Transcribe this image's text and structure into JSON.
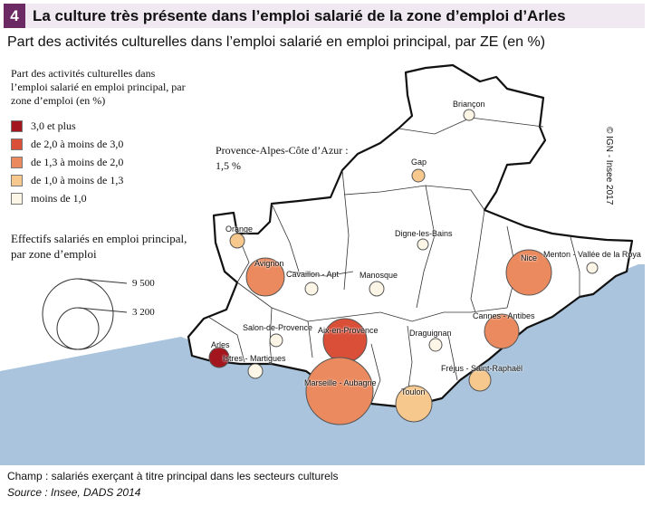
{
  "header": {
    "number": "4",
    "title": "La culture très présente dans l’emploi salarié de la zone d’emploi d’Arles"
  },
  "subtitle": "Part des activités culturelles dans l’emploi salarié en emploi principal, par ZE (en %)",
  "legend": {
    "title": "Part des activités culturelles dans l’emploi salarié en emploi principal, par zone d’emploi (en %)",
    "classes": [
      {
        "label": "3,0 et plus",
        "color": "#a4161e"
      },
      {
        "label": "de 2,0 à moins de 3,0",
        "color": "#d94f38"
      },
      {
        "label": "de 1,3 à moins de 2,0",
        "color": "#eb8a5e"
      },
      {
        "label": "de 1,0  à moins de 1,3",
        "color": "#f6c88d"
      },
      {
        "label": "moins de 1,0",
        "color": "#fdf5e6"
      }
    ]
  },
  "size_legend": {
    "title": "Effectifs salariés en emploi principal, par zone d’emploi",
    "large": "9 500",
    "small": "3 200"
  },
  "paca_note": {
    "label": "Provence-Alpes-Côte d’Azur :",
    "value": "1,5 %"
  },
  "copyright": "© IGN - Insee 2017",
  "zones": [
    {
      "name": "Briançon",
      "class": 4
    },
    {
      "name": "Gap",
      "class": 3
    },
    {
      "name": "Orange",
      "class": 3
    },
    {
      "name": "Digne-les-Bains",
      "class": 4
    },
    {
      "name": "Avignon",
      "class": 2
    },
    {
      "name": "Cavaillon - Apt",
      "class": 4
    },
    {
      "name": "Manosque",
      "class": 4
    },
    {
      "name": "Nice",
      "class": 2
    },
    {
      "name": "Menton - Vallée de la Roya",
      "class": 4
    },
    {
      "name": "Salon-de-Provence",
      "class": 4
    },
    {
      "name": "Aix-en-Provence",
      "class": 1
    },
    {
      "name": "Cannes - Antibes",
      "class": 2
    },
    {
      "name": "Arles",
      "class": 0
    },
    {
      "name": "Istres - Martigues",
      "class": 4
    },
    {
      "name": "Draguignan",
      "class": 4
    },
    {
      "name": "Marseille - Aubagne",
      "class": 2
    },
    {
      "name": "Fréjus - Saint-Raphaël",
      "class": 3
    },
    {
      "name": "Toulon",
      "class": 3
    }
  ],
  "footer": {
    "champ": "Champ : salariés exerçant à titre principal dans les secteurs culturels",
    "source": "Source : Insee, DADS 2014"
  }
}
